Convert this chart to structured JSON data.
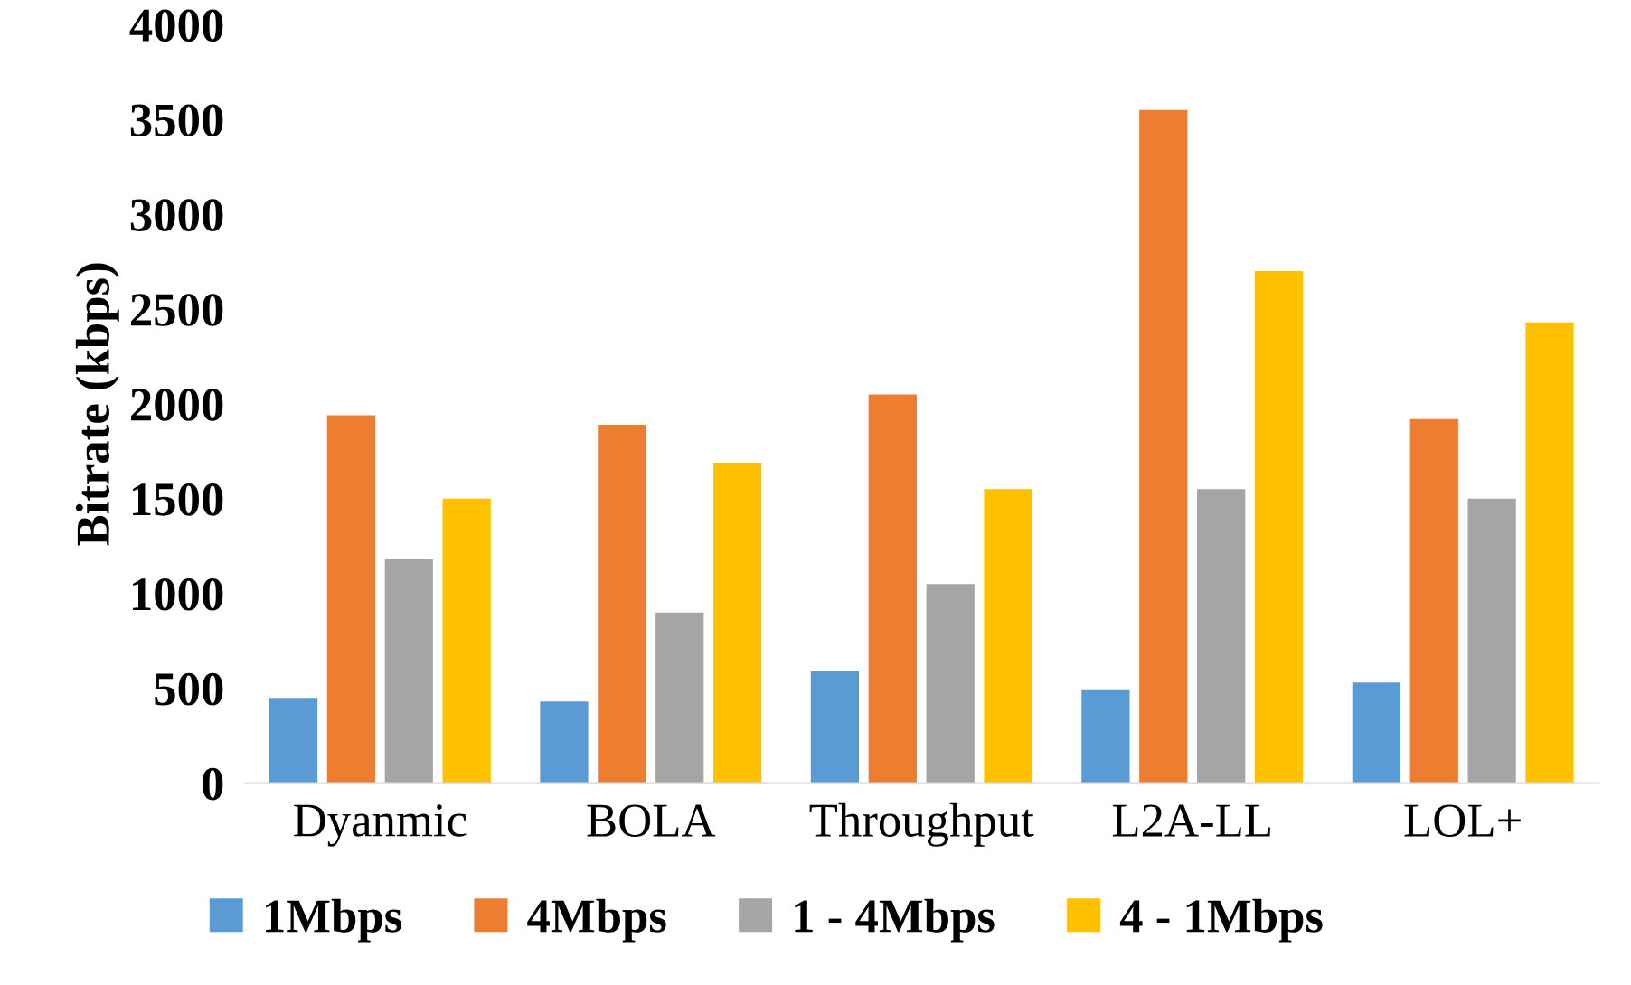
{
  "chart_data": {
    "type": "bar",
    "ylabel": "Bitrate (kbps)",
    "categories": [
      "Dyanmic",
      "BOLA",
      "Throughput",
      "L2A-LL",
      "LOL+"
    ],
    "series": [
      {
        "name": "1Mbps",
        "color": "#5b9bd5",
        "values": [
          450,
          430,
          590,
          490,
          530
        ]
      },
      {
        "name": "4Mbps",
        "color": "#ed7d31",
        "values": [
          1940,
          1890,
          2050,
          3550,
          1920
        ]
      },
      {
        "name": "1 - 4Mbps",
        "color": "#a5a5a5",
        "values": [
          1180,
          900,
          1050,
          1550,
          1500
        ]
      },
      {
        "name": "4 - 1Mbps",
        "color": "#ffc000",
        "values": [
          1500,
          1690,
          1550,
          2700,
          2430
        ]
      }
    ],
    "ylim": [
      0,
      4000
    ],
    "yticks": [
      0,
      500,
      1000,
      1500,
      2000,
      2500,
      3000,
      3500,
      4000
    ],
    "grid": false,
    "legend": "bottom"
  }
}
